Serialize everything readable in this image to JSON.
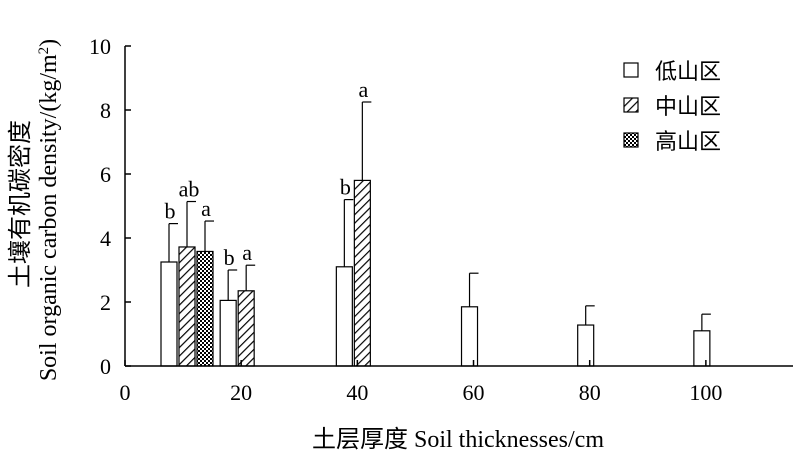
{
  "chart_data": {
    "type": "bar",
    "x_ticks": [
      0,
      20,
      40,
      60,
      80,
      100
    ],
    "y_ticks": [
      0,
      2,
      4,
      6,
      8,
      10
    ],
    "xlim": [
      0,
      115
    ],
    "ylim": [
      0,
      10
    ],
    "xlabel": "土层厚度 Soil thicknesses/cm",
    "ylabel_cn": "土壤有机碳密度",
    "ylabel_en": "Soil organic carbon density/(kg/m",
    "ylabel_sup": "2",
    "ylabel_end": ")",
    "grid": false,
    "legend_position": "top-right",
    "series": [
      {
        "name": "低山区",
        "pattern": "open",
        "points": [
          {
            "x": 10,
            "value": 3.25,
            "error": 1.2,
            "sig": "b"
          },
          {
            "x": 20,
            "value": 2.05,
            "error": 0.95,
            "sig": "b"
          },
          {
            "x": 40,
            "value": 3.1,
            "error": 2.1,
            "sig": "b"
          },
          {
            "x": 60,
            "value": 1.85,
            "error": 1.05,
            "sig": ""
          },
          {
            "x": 80,
            "value": 1.28,
            "error": 0.6,
            "sig": ""
          },
          {
            "x": 100,
            "value": 1.1,
            "error": 0.52,
            "sig": ""
          }
        ]
      },
      {
        "name": "中山区",
        "pattern": "hatched",
        "points": [
          {
            "x": 10,
            "value": 3.72,
            "error": 1.42,
            "sig": "ab"
          },
          {
            "x": 20,
            "value": 2.35,
            "error": 0.8,
            "sig": "a"
          },
          {
            "x": 40,
            "value": 5.8,
            "error": 2.45,
            "sig": "a"
          }
        ]
      },
      {
        "name": "高山区",
        "pattern": "crosshatch",
        "points": [
          {
            "x": 10,
            "value": 3.58,
            "error": 0.95,
            "sig": "a"
          }
        ]
      }
    ]
  }
}
